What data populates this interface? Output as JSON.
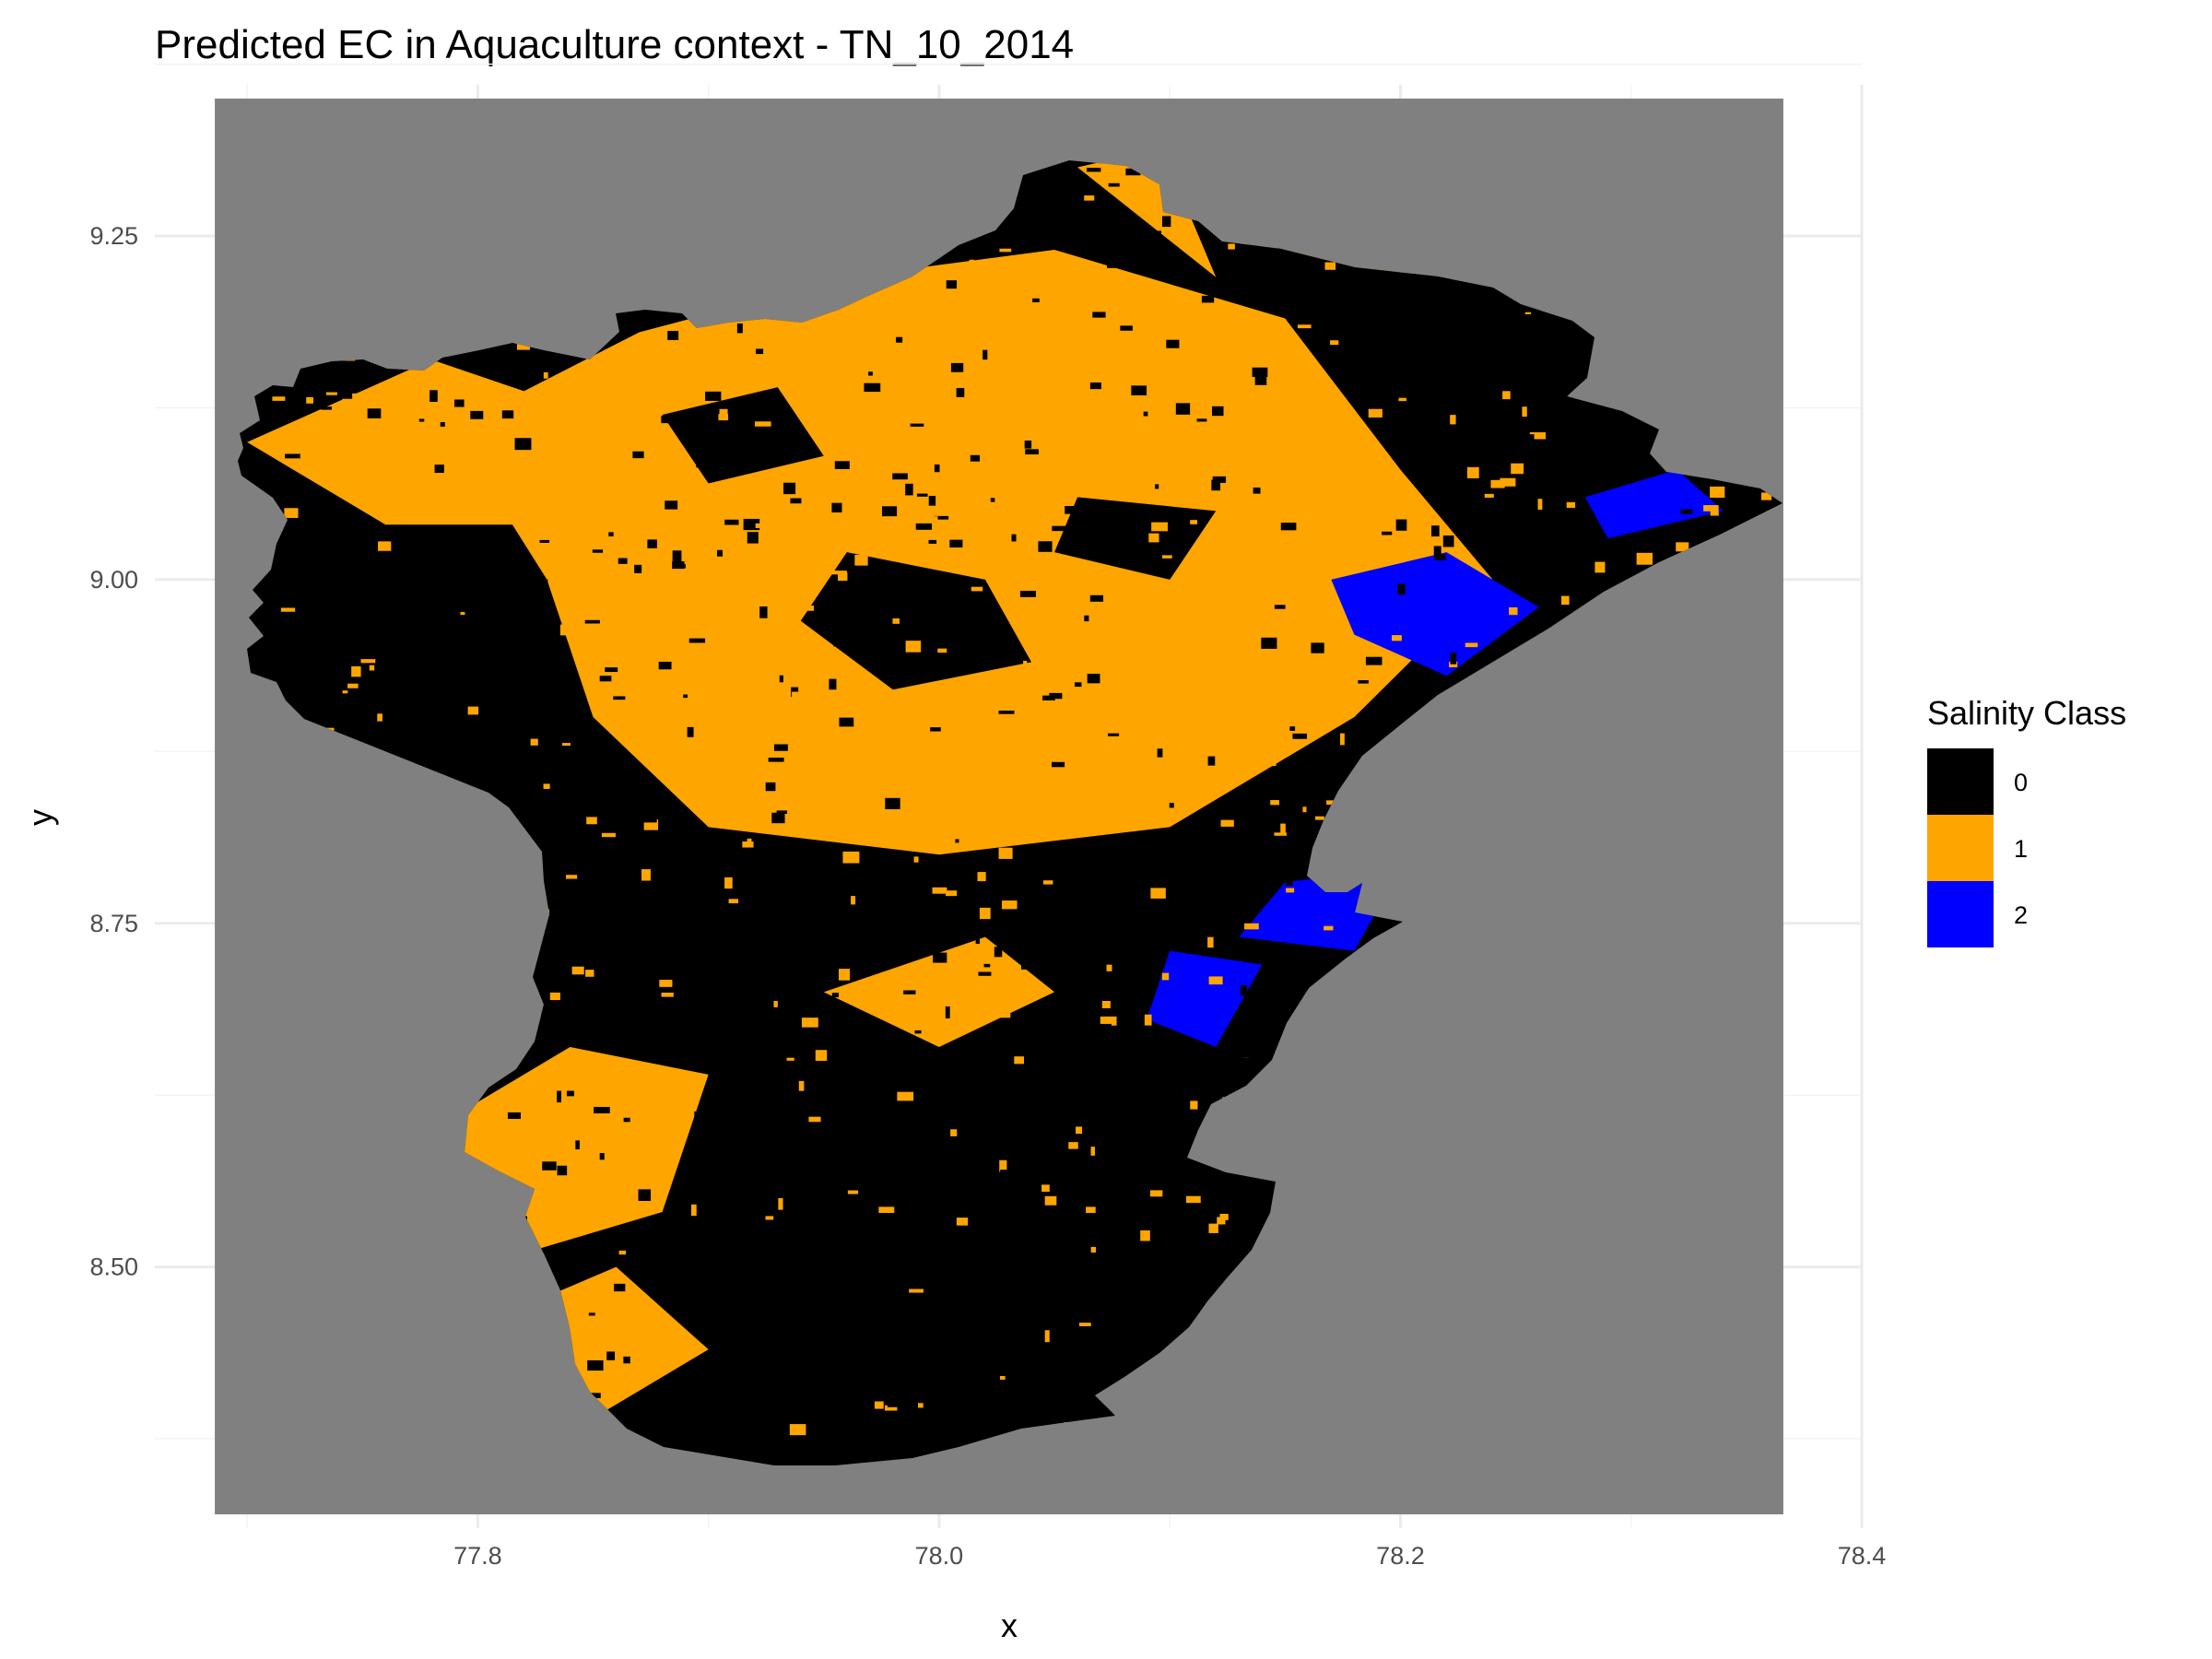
{
  "chart_data": {
    "type": "heatmap",
    "title": "Predicted EC in Aquaculture context - TN_10_2014",
    "xlabel": "x",
    "ylabel": "y",
    "x_ticks": [
      "77.8",
      "78.0",
      "78.2",
      "78.4"
    ],
    "x_tick_values": [
      77.8,
      78.0,
      78.2,
      78.4
    ],
    "y_ticks": [
      "8.50",
      "8.75",
      "9.00",
      "9.25"
    ],
    "y_tick_values": [
      8.5,
      8.75,
      9.0,
      9.25
    ],
    "xlim": [
      77.66,
      78.4
    ],
    "ylim": [
      8.31,
      9.36
    ],
    "raster_extent_x": [
      77.686,
      78.366
    ],
    "raster_extent_y": [
      8.32,
      9.35
    ],
    "grid": true,
    "background_color": "#808080",
    "legend": {
      "title": "Salinity Class",
      "placement": "right",
      "entries": [
        {
          "label": "0",
          "color": "#000000"
        },
        {
          "label": "1",
          "color": "#ffa500"
        },
        {
          "label": "2",
          "color": "#0000ff"
        }
      ]
    },
    "class_areas": {
      "orange_zones": [
        [
          [
            77.8,
            9.12
          ],
          [
            77.87,
            9.18
          ],
          [
            77.96,
            9.22
          ],
          [
            78.05,
            9.24
          ],
          [
            78.15,
            9.19
          ],
          [
            78.2,
            9.08
          ],
          [
            78.24,
            9.0
          ],
          [
            78.18,
            8.9
          ],
          [
            78.1,
            8.82
          ],
          [
            78.0,
            8.8
          ],
          [
            77.9,
            8.82
          ],
          [
            77.85,
            8.9
          ],
          [
            77.83,
            9.0
          ],
          [
            77.8,
            9.08
          ]
        ],
        [
          [
            77.7,
            9.1
          ],
          [
            77.78,
            9.16
          ],
          [
            77.85,
            9.12
          ],
          [
            77.84,
            9.04
          ],
          [
            77.76,
            9.04
          ]
        ],
        [
          [
            78.06,
            9.3
          ],
          [
            78.14,
            9.33
          ],
          [
            78.22,
            9.28
          ],
          [
            78.2,
            9.2
          ],
          [
            78.12,
            9.22
          ]
        ],
        [
          [
            77.78,
            8.6
          ],
          [
            77.84,
            8.66
          ],
          [
            77.9,
            8.64
          ],
          [
            77.88,
            8.54
          ],
          [
            77.8,
            8.5
          ]
        ],
        [
          [
            77.79,
            8.45
          ],
          [
            77.86,
            8.5
          ],
          [
            77.9,
            8.44
          ],
          [
            77.84,
            8.38
          ]
        ],
        [
          [
            77.95,
            8.7
          ],
          [
            78.02,
            8.74
          ],
          [
            78.05,
            8.7
          ],
          [
            78.0,
            8.66
          ]
        ]
      ],
      "black_zones": [
        [
          [
            77.96,
            9.02
          ],
          [
            78.02,
            9.0
          ],
          [
            78.04,
            8.94
          ],
          [
            77.98,
            8.92
          ],
          [
            77.94,
            8.97
          ]
        ],
        [
          [
            77.88,
            9.12
          ],
          [
            77.93,
            9.14
          ],
          [
            77.95,
            9.09
          ],
          [
            77.9,
            9.07
          ]
        ],
        [
          [
            78.1,
            9.3
          ],
          [
            78.25,
            9.2
          ],
          [
            78.28,
            9.12
          ],
          [
            78.22,
            9.14
          ],
          [
            78.12,
            9.22
          ]
        ],
        [
          [
            78.06,
            9.06
          ],
          [
            78.12,
            9.05
          ],
          [
            78.1,
            9.0
          ],
          [
            78.05,
            9.02
          ]
        ]
      ],
      "blue_zones": [
        [
          [
            78.17,
            9.0
          ],
          [
            78.22,
            9.02
          ],
          [
            78.26,
            8.98
          ],
          [
            78.22,
            8.93
          ],
          [
            78.18,
            8.96
          ]
        ],
        [
          [
            78.15,
            8.78
          ],
          [
            78.2,
            8.79
          ],
          [
            78.18,
            8.73
          ],
          [
            78.13,
            8.74
          ]
        ],
        [
          [
            78.1,
            8.73
          ],
          [
            78.14,
            8.72
          ],
          [
            78.12,
            8.66
          ],
          [
            78.09,
            8.68
          ]
        ],
        [
          [
            78.28,
            9.06
          ],
          [
            78.32,
            9.08
          ],
          [
            78.34,
            9.05
          ],
          [
            78.29,
            9.03
          ]
        ]
      ]
    }
  }
}
